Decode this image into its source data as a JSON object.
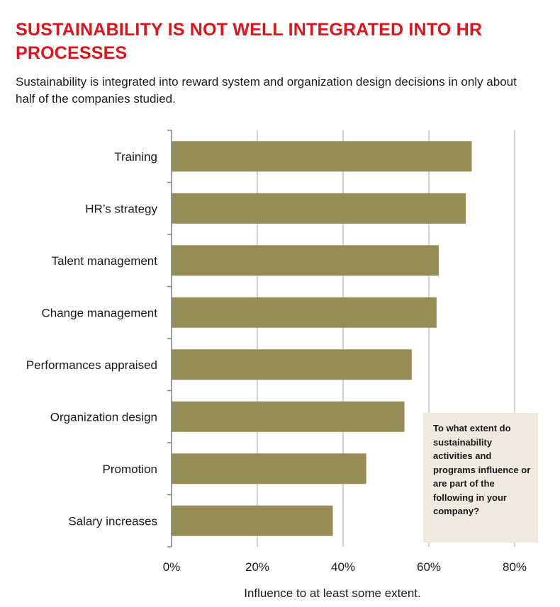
{
  "header": {
    "title": "SUSTAINABILITY IS NOT WELL INTEGRATED INTO HR PROCESSES",
    "subtitle": "Sustainability is integrated into reward system and organization design decisions in only about half of the companies studied."
  },
  "note": {
    "text": "To what extent do sustainability activities and programs influence or are part of the following in your company?"
  },
  "chart_data": {
    "type": "bar",
    "orientation": "horizontal",
    "categories": [
      "Training",
      "HR’s strategy",
      "Talent management",
      "Change management",
      "Performances appraised",
      "Organization design",
      "Promotion",
      "Salary increases"
    ],
    "values": [
      70,
      68.6,
      62.3,
      61.8,
      56,
      54.3,
      45.4,
      37.6
    ],
    "xlabel": "Influence to at least some extent.",
    "xlim": [
      0,
      80
    ],
    "x_ticks": [
      "0%",
      "20%",
      "40%",
      "60%",
      "80%"
    ],
    "x_tick_values": [
      0,
      20,
      40,
      60,
      80
    ],
    "grid": true,
    "bar_color": "#958c56"
  }
}
